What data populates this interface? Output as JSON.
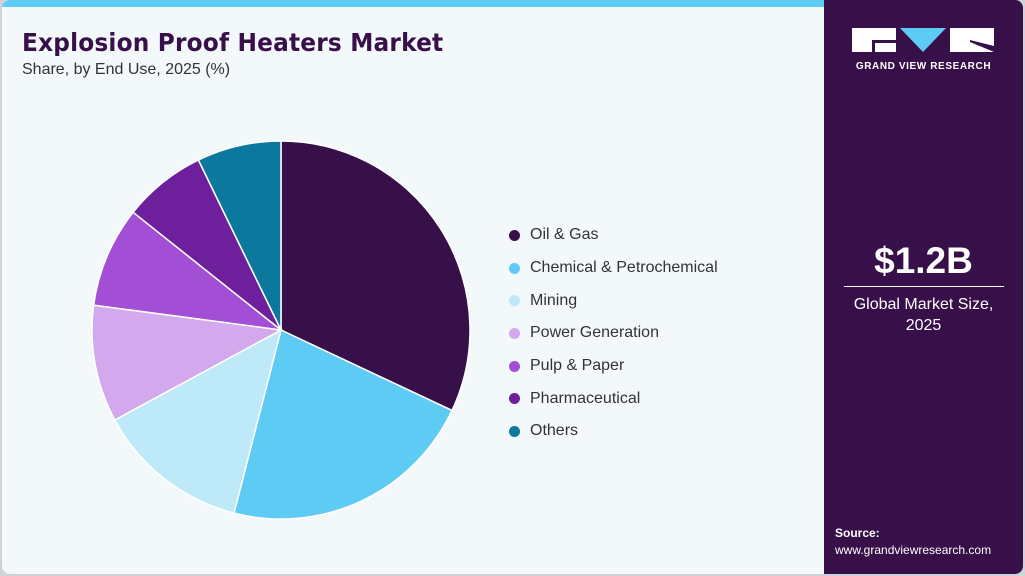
{
  "header": {
    "title": "Explosion Proof Heaters Market",
    "subtitle": "Share, by End Use, 2025 (%)"
  },
  "legend": [
    {
      "label": "Oil & Gas",
      "color": "#37104a"
    },
    {
      "label": "Chemical & Petrochemical",
      "color": "#5ecbf5"
    },
    {
      "label": "Mining",
      "color": "#bde9f9"
    },
    {
      "label": "Power Generation",
      "color": "#d4a8ec"
    },
    {
      "label": "Pulp & Paper",
      "color": "#a24fd6"
    },
    {
      "label": "Pharmaceutical",
      "color": "#6e209c"
    },
    {
      "label": "Others",
      "color": "#0b789e"
    }
  ],
  "sidebar": {
    "brand": "GRAND VIEW RESEARCH",
    "metric_value": "$1.2B",
    "metric_label_line1": "Global Market Size,",
    "metric_label_line2": "2025",
    "source_label": "Source:",
    "source_url": "www.grandviewresearch.com"
  },
  "colors": {
    "accent_bar": "#5ecbf5",
    "sidebar_bg": "#37104a",
    "background": "#f3f8fb"
  },
  "chart_data": {
    "type": "pie",
    "title": "Explosion Proof Heaters Market",
    "subtitle": "Share, by End Use, 2025 (%)",
    "categories": [
      "Oil & Gas",
      "Chemical & Petrochemical",
      "Mining",
      "Power Generation",
      "Pulp & Paper",
      "Pharmaceutical",
      "Others"
    ],
    "values": [
      32.0,
      22.0,
      13.1,
      10.0,
      8.6,
      7.1,
      7.2
    ],
    "colors": [
      "#37104a",
      "#5ecbf5",
      "#bde9f9",
      "#d4a8ec",
      "#a24fd6",
      "#6e209c",
      "#0b789e"
    ],
    "start_angle": "12 o'clock, clockwise",
    "legend_position": "right",
    "note": "values estimated from slice angles"
  }
}
